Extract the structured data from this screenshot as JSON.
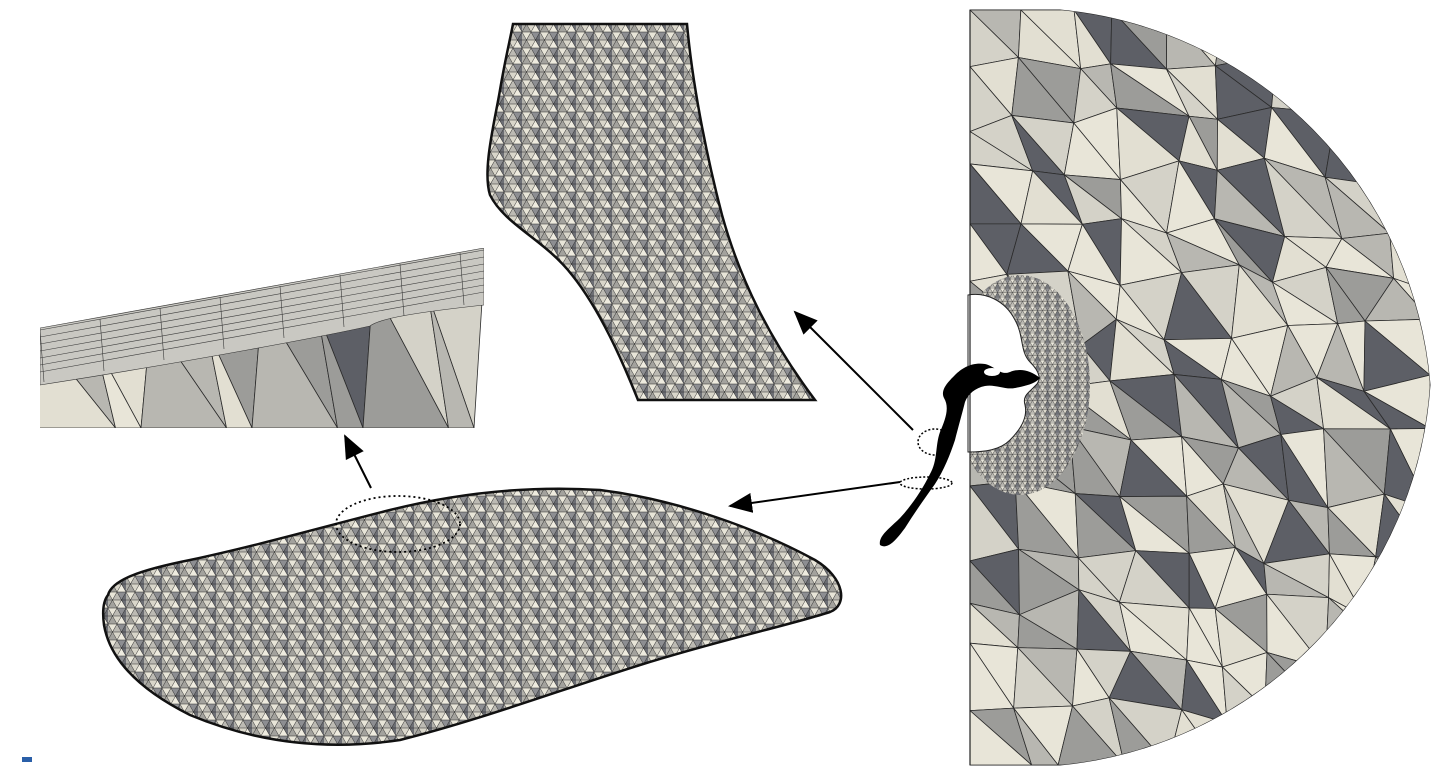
{
  "figure": {
    "panels": [
      {
        "id": "full-domain",
        "description_icon": "hemisphere-mesh-icon"
      },
      {
        "id": "throat-zoom",
        "description_icon": "triangle-mesh-icon"
      },
      {
        "id": "cross-section",
        "description_icon": "triangle-mesh-icon"
      },
      {
        "id": "boundary-layer-zoom",
        "description_icon": "prism-layer-icon"
      }
    ],
    "callouts": [
      {
        "from": "throat-marker",
        "to": "throat-zoom"
      },
      {
        "from": "cross-section-marker",
        "to": "cross-section"
      },
      {
        "from": "boundary-marker",
        "to": "boundary-layer-zoom"
      }
    ],
    "colors": {
      "mesh_light": "#e8e5d8",
      "mesh_mid": "#b8b7b1",
      "mesh_dark": "#5d5f66",
      "edge": "#1a1a1a",
      "arrow": "#000000",
      "accent_mark": "#2a5fa8"
    }
  }
}
